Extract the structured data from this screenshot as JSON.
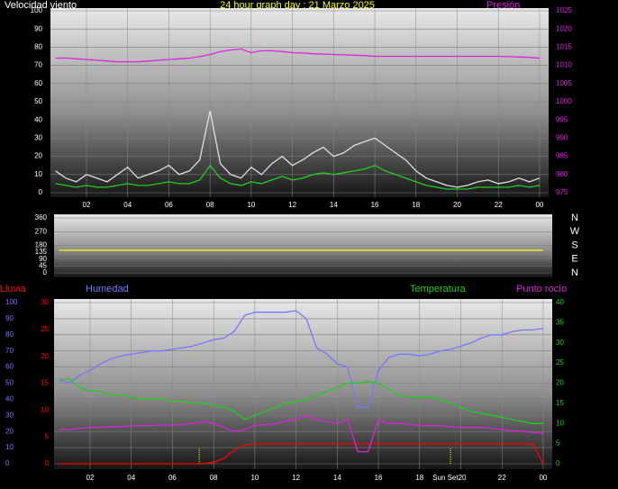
{
  "chart_data": [
    {
      "type": "line",
      "title": "24 hour graph day : 21 Marzo 2025",
      "x": [
        0.5,
        1,
        1.5,
        2,
        2.5,
        3,
        3.5,
        4,
        4.5,
        5,
        5.5,
        6,
        6.5,
        7,
        7.5,
        8,
        8.5,
        9,
        9.5,
        10,
        10.5,
        11,
        11.5,
        12,
        12.5,
        13,
        13.5,
        14,
        14.5,
        15,
        15.5,
        16,
        16.5,
        17,
        17.5,
        18,
        18.5,
        19,
        19.5,
        20,
        20.5,
        21,
        21.5,
        22,
        22.5,
        23,
        23.5,
        24
      ],
      "xlim": [
        0.25,
        24.44
      ],
      "xticks": [
        {
          "value": 2,
          "label": "02"
        },
        {
          "value": 4,
          "label": "04"
        },
        {
          "value": 6,
          "label": "06"
        },
        {
          "value": 8,
          "label": "08"
        },
        {
          "value": 10,
          "label": "10"
        },
        12,
        14,
        16,
        18,
        20,
        22,
        {
          "value": 24,
          "label": "00"
        }
      ],
      "ylim": [
        0,
        100
      ],
      "yticks": [
        0,
        10,
        20,
        30,
        40,
        50,
        60,
        70,
        80,
        90,
        100
      ],
      "y2lim": [
        975,
        1025
      ],
      "y2ticks": [
        975,
        980,
        985,
        990,
        995,
        1000,
        1005,
        1010,
        1015,
        1020,
        1025
      ],
      "grid": true,
      "series": [
        {
          "name": "Velocidad viento",
          "color": "#e0e0e0",
          "values": [
            12,
            8,
            6,
            10,
            8,
            6,
            10,
            14,
            8,
            10,
            12,
            15,
            10,
            12,
            18,
            45,
            16,
            10,
            8,
            14,
            10,
            16,
            20,
            15,
            18,
            22,
            25,
            20,
            22,
            26,
            28,
            30,
            26,
            22,
            18,
            12,
            8,
            6,
            4,
            3,
            4,
            6,
            7,
            5,
            6,
            8,
            6,
            8
          ]
        },
        {
          "color": "#22cc22",
          "values": [
            5,
            4,
            3,
            4,
            3,
            3,
            4,
            5,
            4,
            4,
            5,
            6,
            5,
            5,
            7,
            15,
            8,
            5,
            4,
            6,
            5,
            7,
            9,
            7,
            8,
            10,
            11,
            10,
            11,
            12,
            13,
            15,
            12,
            10,
            8,
            6,
            4,
            3,
            2,
            2,
            2,
            3,
            3,
            3,
            3,
            4,
            3,
            4
          ]
        },
        {
          "name": "Presión",
          "color": "#e020e0",
          "axis": "y2",
          "values": [
            1012,
            1012,
            1011.8,
            1011.6,
            1011.4,
            1011.2,
            1011,
            1011,
            1011,
            1011.2,
            1011.4,
            1011.6,
            1011.8,
            1012,
            1012.4,
            1013,
            1013.8,
            1014.2,
            1014.5,
            1013.5,
            1014,
            1014,
            1013.8,
            1013.5,
            1013.4,
            1013.2,
            1013.1,
            1013,
            1012.9,
            1012.8,
            1012.7,
            1012.5,
            1012.5,
            1012.5,
            1012.5,
            1012.5,
            1012.5,
            1012.5,
            1012.5,
            1012.5,
            1012.5,
            1012.5,
            1012.5,
            1012.5,
            1012.4,
            1012.3,
            1012.2,
            1012
          ]
        }
      ]
    },
    {
      "type": "line",
      "x": [
        0.5,
        24
      ],
      "xlim": [
        0.25,
        24.44
      ],
      "ylim": [
        0,
        360
      ],
      "yticks": [
        0,
        45,
        90,
        135,
        180,
        270,
        360
      ],
      "y2lim": [
        0,
        360
      ],
      "y2ticks": [
        {
          "value": 0,
          "label": "N"
        },
        {
          "value": 90,
          "label": "E"
        },
        {
          "value": 180,
          "label": "S"
        },
        {
          "value": 270,
          "label": "W"
        },
        {
          "value": 360,
          "label": "N"
        }
      ],
      "grid": true,
      "series": [
        {
          "color": "#ffff00",
          "values": [
            148,
            148
          ]
        }
      ]
    },
    {
      "type": "line",
      "x": [
        0.5,
        1,
        1.5,
        2,
        2.5,
        3,
        3.5,
        4,
        4.5,
        5,
        5.5,
        6,
        6.5,
        7,
        7.5,
        8,
        8.5,
        9,
        9.5,
        10,
        10.5,
        11,
        11.5,
        12,
        12.5,
        13,
        13.5,
        14,
        14.5,
        15,
        15.5,
        16,
        16.5,
        17,
        17.5,
        18,
        18.5,
        19,
        19.5,
        20,
        20.5,
        21,
        21.5,
        22,
        22.5,
        23,
        23.5,
        24
      ],
      "xlim": [
        0.25,
        24.44
      ],
      "xticks": [
        {
          "value": 2,
          "label": "02"
        },
        {
          "value": 4,
          "label": "04"
        },
        {
          "value": 6,
          "label": "06"
        },
        {
          "value": 8,
          "label": "08"
        },
        {
          "value": 10,
          "label": "10"
        },
        12,
        14,
        16,
        18,
        {
          "value": 20,
          "label": "Sun Set20"
        },
        22,
        {
          "value": 24,
          "label": "00"
        }
      ],
      "ylim": [
        0,
        100
      ],
      "yticks": [
        0,
        10,
        20,
        30,
        40,
        50,
        60,
        70,
        80,
        90,
        100
      ],
      "y2lim": [
        0,
        40
      ],
      "y2ticks": [
        0,
        5,
        10,
        15,
        20,
        25,
        30,
        35,
        40
      ],
      "y3lim": [
        0,
        30
      ],
      "y3ticks": [
        0,
        5,
        10,
        15,
        20,
        25,
        30
      ],
      "sun_lines": [
        7.3,
        19.5
      ],
      "grid": true,
      "series": [
        {
          "name": "Lluvia",
          "color": "#ff0000",
          "axis": "y3",
          "values": [
            0,
            0,
            0,
            0,
            0,
            0,
            0,
            0,
            0,
            0,
            0,
            0,
            0,
            0,
            0,
            0.3,
            1,
            2.5,
            3.5,
            3.7,
            3.7,
            3.7,
            3.7,
            3.7,
            3.7,
            3.7,
            3.7,
            3.7,
            3.7,
            3.7,
            3.7,
            3.7,
            3.7,
            3.7,
            3.7,
            3.7,
            3.7,
            3.7,
            3.7,
            3.7,
            3.7,
            3.7,
            3.7,
            3.7,
            3.7,
            3.7,
            3.7,
            0
          ]
        },
        {
          "name": "Humedad",
          "color": "#7777ff",
          "values": [
            52,
            50,
            55,
            58,
            62,
            65,
            67,
            68,
            69,
            70,
            70,
            71,
            72,
            73,
            75,
            77,
            78,
            82,
            92,
            94,
            94,
            94,
            94,
            95,
            90,
            72,
            68,
            62,
            60,
            35,
            35,
            58,
            66,
            68,
            68,
            67,
            68,
            70,
            71,
            73,
            75,
            78,
            80,
            80,
            82,
            83,
            83,
            84
          ]
        },
        {
          "name": "Temperatura",
          "color": "#22cc22",
          "axis": "y2",
          "values": [
            21,
            21,
            19,
            18,
            18,
            17,
            17,
            16.5,
            16,
            16,
            16,
            15.5,
            15.5,
            15,
            15,
            14.5,
            14,
            13,
            11,
            12,
            13,
            14,
            15,
            15.5,
            16,
            17,
            18,
            19,
            20,
            20,
            20.5,
            20,
            18.5,
            17,
            16.5,
            16.5,
            16.5,
            16,
            15,
            14,
            13,
            12.5,
            12,
            11.5,
            11,
            10.5,
            10,
            10
          ]
        },
        {
          "name": "Punto rocío",
          "color": "#dd22dd",
          "axis": "y2",
          "values": [
            8.5,
            8.5,
            8.8,
            9,
            9,
            9.2,
            9.2,
            9.4,
            9.5,
            9.5,
            9.6,
            9.6,
            9.8,
            10,
            10.5,
            10,
            9,
            8,
            8.5,
            9.5,
            9.8,
            10,
            10.5,
            11,
            12,
            11,
            10.5,
            10,
            11,
            3,
            3,
            11,
            10,
            10,
            9.8,
            9.5,
            9.5,
            9.5,
            9.2,
            9,
            9,
            9,
            8.8,
            8.5,
            8.2,
            8,
            7.8,
            7.5
          ]
        }
      ]
    }
  ]
}
